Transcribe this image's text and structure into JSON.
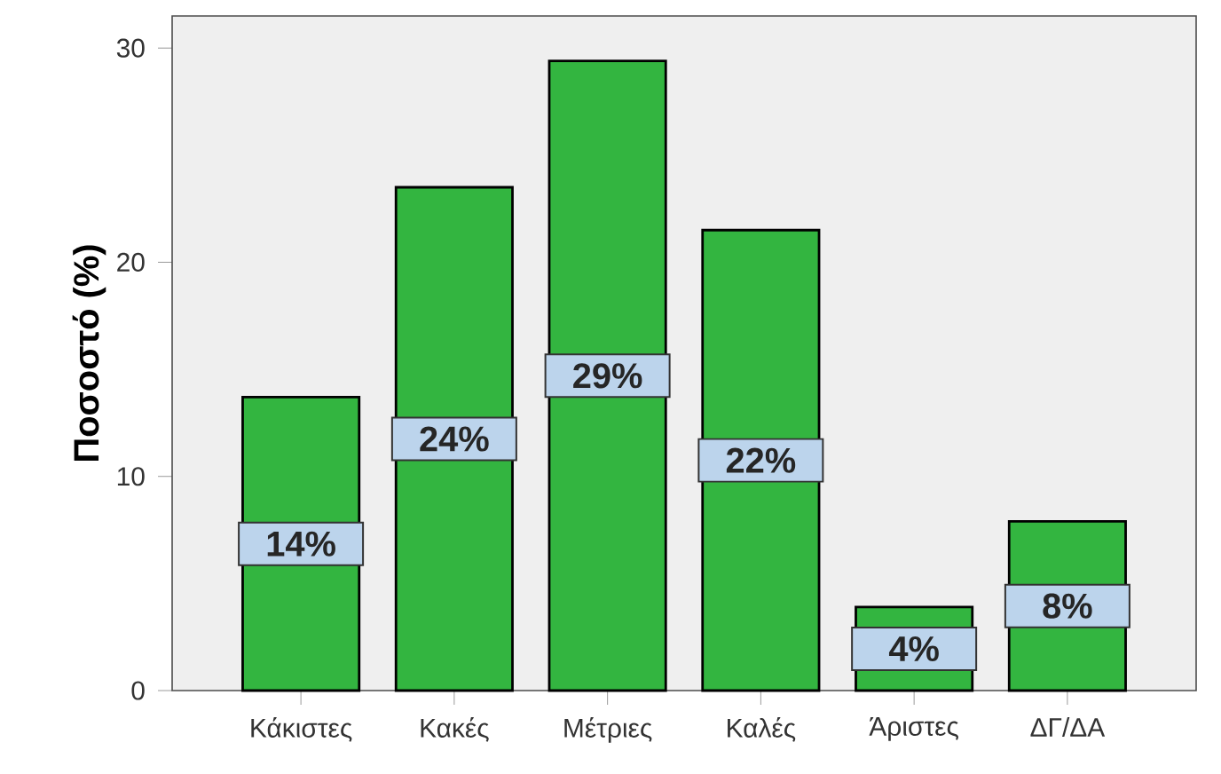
{
  "chart_data": {
    "type": "bar",
    "ylabel": "Ποσοστό (%)",
    "categories": [
      "Κάκιστες",
      "Κακές",
      "Μέτριες",
      "Καλές",
      "Άριστες",
      "ΔΓ/ΔΑ"
    ],
    "values": [
      13.7,
      23.5,
      29.4,
      21.5,
      3.9,
      7.9
    ],
    "value_labels": [
      "14%",
      "24%",
      "29%",
      "22%",
      "4%",
      "8%"
    ],
    "color": "#33b540",
    "ylim": [
      0,
      31.5
    ],
    "yticks": [
      0,
      10,
      20,
      30
    ],
    "grid": false
  }
}
